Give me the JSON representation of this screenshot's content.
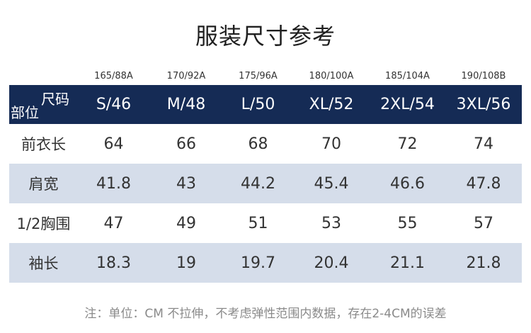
{
  "title": "服装尺寸参考",
  "header": {
    "corner_top": "尺码",
    "corner_bottom": "部位",
    "codes": [
      "165/88A",
      "170/92A",
      "175/96A",
      "180/100A",
      "185/104A",
      "190/108B"
    ],
    "sizes": [
      "S/46",
      "M/48",
      "L/50",
      "XL/52",
      "2XL/54",
      "3XL/56"
    ]
  },
  "rows": [
    {
      "label": "前衣长",
      "values": [
        "64",
        "66",
        "68",
        "70",
        "72",
        "74"
      ]
    },
    {
      "label": "肩宽",
      "values": [
        "41.8",
        "43",
        "44.2",
        "45.4",
        "46.6",
        "47.8"
      ]
    },
    {
      "label": "1/2胸围",
      "values": [
        "47",
        "49",
        "51",
        "53",
        "55",
        "57"
      ]
    },
    {
      "label": "袖长",
      "values": [
        "18.3",
        "19",
        "19.7",
        "20.4",
        "21.1",
        "21.8"
      ]
    }
  ],
  "note": "注：单位：CM 不拉伸，不考虑弹性范围内数据，存在2-4CM的误差",
  "colors": {
    "header_bg": "#152b55",
    "shaded_row": "#d5ddea"
  }
}
